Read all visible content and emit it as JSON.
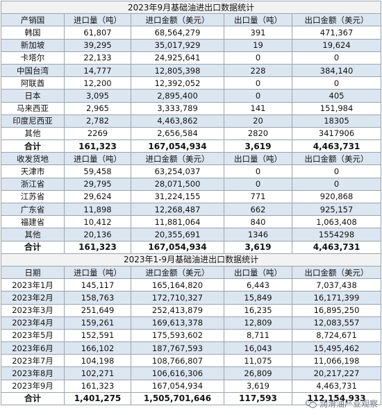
{
  "t1": {
    "title": "2023年9月基础油进出口数据统计",
    "header": [
      "产销国",
      "进口量（吨）",
      "进口金额（美元）",
      "出口量（吨）",
      "出口金额（美元）"
    ],
    "rows": [
      [
        "韩国",
        "61,807",
        "68,564,279",
        "391",
        "471,367"
      ],
      [
        "新加坡",
        "39,295",
        "35,017,929",
        "19",
        "19,624"
      ],
      [
        "卡塔尔",
        "22,133",
        "24,925,641",
        "0",
        "0"
      ],
      [
        "中国台湾",
        "14,777",
        "12,805,398",
        "228",
        "384,140"
      ],
      [
        "阿联酋",
        "12,200",
        "12,392,052",
        "0",
        "0"
      ],
      [
        "日本",
        "3,095",
        "2,895,400",
        "0",
        "405"
      ],
      [
        "马来西亚",
        "2,965",
        "3,333,789",
        "141",
        "151,984"
      ],
      [
        "印度尼西亚",
        "2,782",
        "4,463,862",
        "20",
        "18305"
      ],
      [
        "其他",
        "2269",
        "2,656,584",
        "2820",
        "3417906"
      ]
    ],
    "total": [
      "合计",
      "161,323",
      "167,054,934",
      "3,619",
      "4,463,731"
    ]
  },
  "t2": {
    "header": [
      "收发货地",
      "进口量（吨）",
      "进口金额（美元）",
      "出口量（吨）",
      "出口金额（美元）"
    ],
    "rows": [
      [
        "天津市",
        "59,458",
        "63,254,037",
        "0",
        "0"
      ],
      [
        "浙江省",
        "29,795",
        "28,071,500",
        "0",
        "0"
      ],
      [
        "江苏省",
        "29,624",
        "31,224,155",
        "771",
        "920,868"
      ],
      [
        "广东省",
        "11,898",
        "12,268,487",
        "662",
        "925,157"
      ],
      [
        "福建省",
        "10,412",
        "11,881,064",
        "840",
        "1,063,408"
      ],
      [
        "其他",
        "20,136",
        "20,355,691",
        "1346",
        "1554298"
      ]
    ],
    "total": [
      "合计",
      "161,323",
      "167,054,934",
      "3,619",
      "4,463,731"
    ]
  },
  "t3": {
    "title": "2023年1-9月基础油进出口数据统计",
    "header": [
      "日期",
      "进口量（吨）",
      "进口金额（美元）",
      "出口量（吨）",
      "出口金额（美元）"
    ],
    "rows": [
      [
        "2023年1月",
        "145,117",
        "165,164,820",
        "6,443",
        "7,037,438"
      ],
      [
        "2023年2月",
        "158,763",
        "172,710,327",
        "15,849",
        "16,171,399"
      ],
      [
        "2023年3月",
        "251,649",
        "252,413,879",
        "16,235",
        "16,895,250"
      ],
      [
        "2023年4月",
        "159,261",
        "169,613,378",
        "12,809",
        "12,083,557"
      ],
      [
        "2023年5月",
        "152,591",
        "175,593,602",
        "8,711",
        "8,724,671"
      ],
      [
        "2023年6月",
        "166,102",
        "187,767,593",
        "16,043",
        "15,495,462"
      ],
      [
        "2023年7月",
        "104,198",
        "108,766,807",
        "11,075",
        "11,066,198"
      ],
      [
        "2023年8月",
        "102,271",
        "106,616,306",
        "26,809",
        "20,217,227"
      ],
      [
        "2023年9月",
        "161,323",
        "167,054,934",
        "3,619",
        "4,463,731"
      ]
    ],
    "total": [
      "合计",
      "1,401,275",
      "1,505,701,646",
      "117,593",
      "112,154,933"
    ]
  },
  "watermark": {
    "text": "润滑油产业观察",
    "icon": "wechat-icon"
  }
}
